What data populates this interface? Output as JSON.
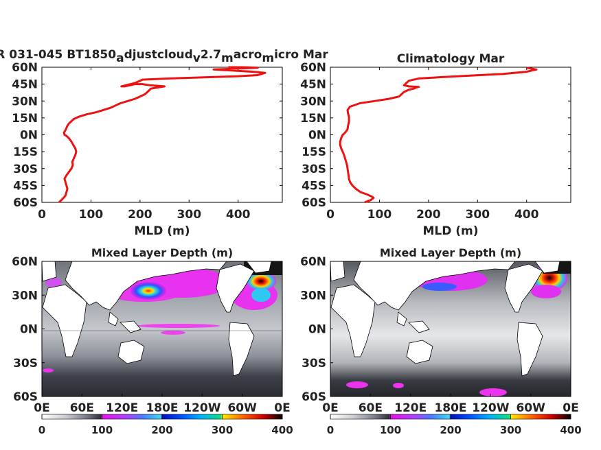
{
  "chart_data": [
    {
      "type": "line",
      "title": "R 031-045 BT1850_adjustcloud_v2.7_macro_micro Mar",
      "title_parts": [
        {
          "t": "R 031-045 BT1850",
          "sub": false
        },
        {
          "t": "a",
          "sub": true
        },
        {
          "t": "djustcloud",
          "sub": false
        },
        {
          "t": "v",
          "sub": true
        },
        {
          "t": "2.7",
          "sub": false
        },
        {
          "t": "m",
          "sub": true
        },
        {
          "t": "acro",
          "sub": false
        },
        {
          "t": "m",
          "sub": true
        },
        {
          "t": "icro Mar",
          "sub": false
        }
      ],
      "xlabel": "MLD (m)",
      "ylabel": "",
      "xlim": [
        0,
        490
      ],
      "ylim": [
        -60,
        60
      ],
      "xticks": [
        0,
        100,
        200,
        300,
        400
      ],
      "xtick_labels": [
        "0",
        "100",
        "200",
        "300",
        "400"
      ],
      "yticks": [
        60,
        45,
        30,
        15,
        0,
        -15,
        -30,
        -45,
        -60
      ],
      "ytick_labels": [
        "60N",
        "45N",
        "30N",
        "15N",
        "0N",
        "15S",
        "30S",
        "45S",
        "60S"
      ],
      "color": "#ee1111",
      "series": [
        {
          "x": [
            35,
            42,
            48,
            50,
            52,
            50,
            48,
            46,
            50,
            55,
            60,
            63,
            62,
            65,
            68,
            70,
            68,
            64,
            60,
            55,
            50,
            46,
            45,
            48,
            50,
            52,
            55,
            60,
            65,
            75,
            90,
            110,
            125,
            140,
            150,
            160,
            175,
            190,
            200,
            210,
            215,
            220,
            222,
            235,
            250,
            220,
            205,
            190,
            180,
            168,
            162,
            190,
            200,
            205,
            260,
            330,
            400,
            440,
            455,
            430,
            390,
            350,
            380,
            410,
            440,
            410,
            380
          ],
          "y": [
            -60,
            -57,
            -54,
            -51,
            -48,
            -45,
            -42,
            -39,
            -36,
            -33,
            -30,
            -27,
            -24,
            -21,
            -18,
            -15,
            -12,
            -9,
            -6,
            -3,
            -1,
            0,
            2,
            4,
            6,
            8,
            10,
            12,
            14,
            16,
            18,
            20,
            22,
            24,
            26,
            28,
            30,
            32,
            34,
            36,
            38,
            40,
            41,
            42,
            43,
            44,
            45,
            45,
            44,
            43,
            43,
            46,
            48,
            49,
            50,
            51,
            52,
            53,
            55,
            56,
            57,
            58,
            58.5,
            59,
            59.5,
            60,
            60
          ]
        }
      ]
    },
    {
      "type": "line",
      "title": "Climatology Mar",
      "xlabel": "MLD (m)",
      "ylabel": "",
      "xlim": [
        0,
        490
      ],
      "ylim": [
        -60,
        60
      ],
      "xticks": [
        0,
        100,
        200,
        300,
        400
      ],
      "xtick_labels": [
        "0",
        "100",
        "200",
        "300",
        "400"
      ],
      "yticks": [
        60,
        45,
        30,
        15,
        0,
        -15,
        -30,
        -45,
        -60
      ],
      "ytick_labels": [
        "60N",
        "45N",
        "30N",
        "15N",
        "0N",
        "15S",
        "30S",
        "45S",
        "60S"
      ],
      "color": "#ee1111",
      "series": [
        {
          "x": [
            70,
            82,
            88,
            85,
            75,
            62,
            52,
            45,
            40,
            38,
            37,
            36,
            35,
            34,
            32,
            30,
            28,
            25,
            22,
            20,
            20,
            22,
            25,
            28,
            30,
            32,
            35,
            36,
            38,
            38,
            36,
            35,
            40,
            60,
            90,
            120,
            140,
            145,
            150,
            160,
            170,
            175,
            180,
            160,
            150,
            155,
            160,
            180,
            260,
            350,
            400,
            420,
            400
          ],
          "y": [
            -60,
            -58,
            -56,
            -55,
            -53,
            -51,
            -48,
            -45,
            -42,
            -39,
            -36,
            -33,
            -30,
            -27,
            -24,
            -21,
            -18,
            -15,
            -12,
            -9,
            -6,
            -3,
            0,
            1,
            2,
            3,
            5,
            8,
            12,
            16,
            19,
            22,
            25,
            28,
            30,
            32,
            34,
            36,
            38,
            40,
            41,
            42,
            42.5,
            43,
            44,
            46,
            48,
            50,
            52,
            54,
            56,
            58,
            59.5
          ]
        }
      ]
    },
    {
      "type": "heatmap",
      "title": "Mixed Layer Depth (m)",
      "colorbar_range": [
        0,
        400
      ],
      "colorbar_ticks": [
        "0",
        "100",
        "200",
        "300",
        "400"
      ],
      "colorbar_stops": [
        "#ffffff",
        "#9ca1a8",
        "#3a3d47",
        "#f00ff0",
        "#0000dd",
        "#30c8f0",
        "#10e090",
        "#ffee00",
        "#ff5500",
        "#e00000",
        "#000000"
      ],
      "xtick_labels": [
        "0E",
        "60E",
        "120E",
        "180E",
        "120W",
        "60W",
        "0E"
      ],
      "ytick_labels": [
        "60N",
        "30N",
        "0N",
        "30S",
        "60S"
      ],
      "features": [
        "deep Kuroshio/NW Pacific mixed layer ~150-350 m",
        "North Atlantic deep mixing >300 m",
        "broad 50-100 m Southern Ocean band",
        "equatorial Pacific bands ~100 m"
      ]
    },
    {
      "type": "heatmap",
      "title": "Mixed Layer Depth (m)",
      "colorbar_range": [
        0,
        400
      ],
      "colorbar_ticks": [
        "0",
        "100",
        "200",
        "300",
        "400"
      ],
      "colorbar_stops": [
        "#ffffff",
        "#9ca1a8",
        "#3a3d47",
        "#f00ff0",
        "#0000dd",
        "#30c8f0",
        "#10e090",
        "#ffee00",
        "#ff5500",
        "#e00000",
        "#000000"
      ],
      "xtick_labels": [
        "0E",
        "60E",
        "120E",
        "180E",
        "120W",
        "60W",
        "0E"
      ],
      "ytick_labels": [
        "60N",
        "30N",
        "0N",
        "30S",
        "60S"
      ],
      "features": [
        "NW Pacific mixed layer ~100-200 m",
        "Labrador/Greenland Sea deep mixing >300 m",
        "shallow tropics <50 m",
        "Southern Ocean band 80-120 m"
      ]
    }
  ]
}
